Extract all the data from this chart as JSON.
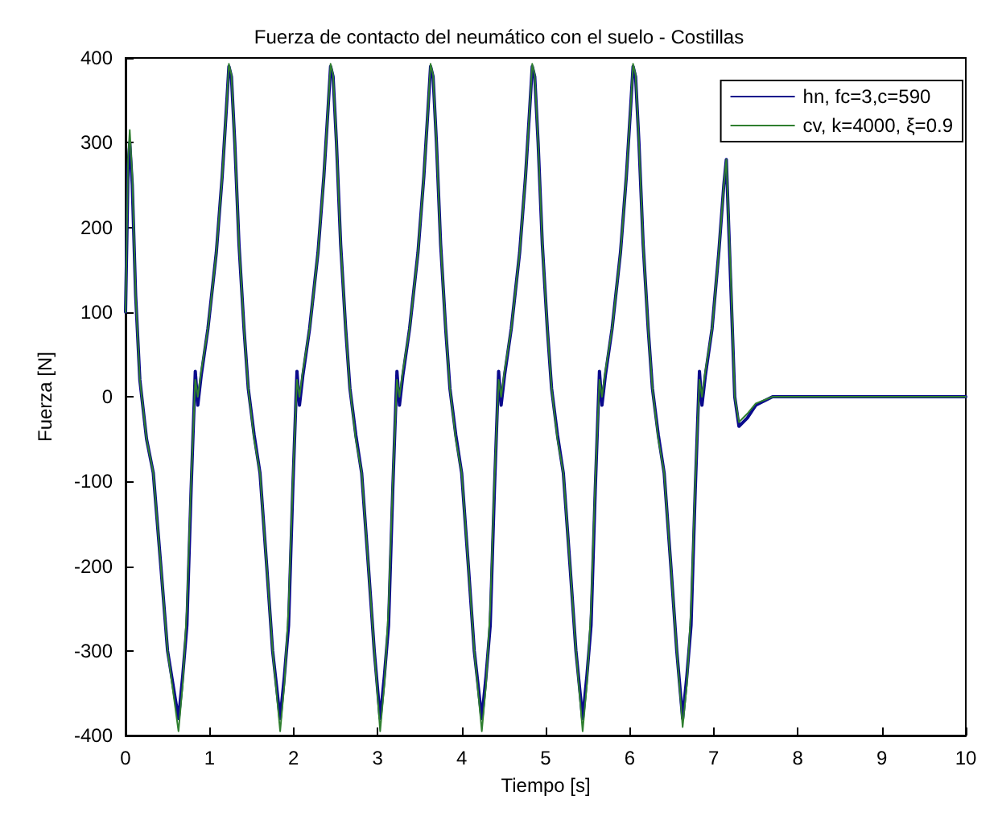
{
  "chart_data": {
    "type": "line",
    "title": "Fuerza de contacto del neumático con el suelo - Costillas",
    "xlabel": "Tiempo [s]",
    "ylabel": "Fuerza [N]",
    "xlim": [
      0,
      10
    ],
    "xticks": [
      0,
      1,
      2,
      3,
      4,
      5,
      6,
      7,
      8,
      9,
      10
    ],
    "ylim": [
      -400,
      400
    ],
    "yticks": [
      -400,
      -300,
      -200,
      -100,
      0,
      100,
      200,
      300,
      400
    ],
    "grid": false,
    "legend": "top right",
    "marker": "none",
    "line_style": "solid",
    "series": [
      {
        "name": "hn, fc=3,c=590",
        "color": "#0a0a8c",
        "x": [
          0,
          0.03,
          0.05,
          0.08,
          0.12,
          0.17,
          0.25,
          0.33,
          0.42,
          0.5,
          0.63,
          0.68,
          0.73,
          0.78,
          0.83,
          0.86,
          0.9,
          0.98,
          1.08,
          1.15,
          1.2,
          1.23,
          1.26,
          1.3,
          1.35,
          1.41,
          1.46,
          1.53,
          1.6,
          1.68,
          1.75,
          1.84,
          1.89,
          1.94,
          1.99,
          2.04,
          2.07,
          2.11,
          2.19,
          2.29,
          2.36,
          2.41,
          2.44,
          2.47,
          2.51,
          2.56,
          2.62,
          2.67,
          2.74,
          2.81,
          2.89,
          2.96,
          3.03,
          3.08,
          3.13,
          3.18,
          3.23,
          3.26,
          3.3,
          3.38,
          3.48,
          3.55,
          3.6,
          3.63,
          3.66,
          3.7,
          3.75,
          3.81,
          3.86,
          3.93,
          4,
          4.08,
          4.15,
          4.24,
          4.29,
          4.34,
          4.39,
          4.44,
          4.47,
          4.51,
          4.59,
          4.69,
          4.76,
          4.81,
          4.84,
          4.87,
          4.91,
          4.96,
          5.02,
          5.07,
          5.14,
          5.21,
          5.29,
          5.36,
          5.44,
          5.49,
          5.54,
          5.59,
          5.64,
          5.67,
          5.71,
          5.79,
          5.89,
          5.96,
          6.01,
          6.04,
          6.07,
          6.11,
          6.16,
          6.22,
          6.27,
          6.34,
          6.41,
          6.49,
          6.56,
          6.63,
          6.68,
          6.73,
          6.78,
          6.83,
          6.86,
          6.9,
          6.98,
          7.06,
          7.12,
          7.15,
          7.2,
          7.25,
          7.3,
          7.4,
          7.5,
          7.7,
          8,
          10
        ],
        "values": [
          100,
          270,
          300,
          250,
          120,
          20,
          -50,
          -90,
          -200,
          -300,
          -380,
          -330,
          -270,
          -110,
          30,
          -10,
          25,
          80,
          170,
          260,
          340,
          390,
          378,
          300,
          180,
          80,
          10,
          -45,
          -90,
          -200,
          -300,
          -380,
          -330,
          -270,
          -110,
          30,
          -10,
          25,
          80,
          170,
          260,
          340,
          390,
          378,
          300,
          180,
          80,
          10,
          -45,
          -90,
          -200,
          -300,
          -380,
          -330,
          -270,
          -110,
          30,
          -10,
          25,
          80,
          170,
          260,
          340,
          390,
          378,
          300,
          180,
          80,
          10,
          -45,
          -90,
          -200,
          -300,
          -380,
          -330,
          -270,
          -110,
          30,
          -10,
          25,
          80,
          170,
          260,
          340,
          390,
          378,
          300,
          180,
          80,
          10,
          -45,
          -90,
          -200,
          -300,
          -380,
          -330,
          -270,
          -110,
          30,
          -10,
          25,
          80,
          170,
          260,
          340,
          390,
          378,
          300,
          180,
          80,
          10,
          -45,
          -90,
          -200,
          -300,
          -380,
          -330,
          -270,
          -110,
          30,
          -10,
          25,
          80,
          170,
          250,
          280,
          140,
          0,
          -35,
          -25,
          -10,
          0,
          0,
          0
        ]
      },
      {
        "name": "cv, k=4000, ξ=0.9",
        "color": "#2f7f2f",
        "x": [
          0,
          0.03,
          0.05,
          0.08,
          0.12,
          0.17,
          0.25,
          0.33,
          0.42,
          0.5,
          0.63,
          0.68,
          0.73,
          0.78,
          0.83,
          0.86,
          0.9,
          0.98,
          1.08,
          1.15,
          1.2,
          1.23,
          1.26,
          1.3,
          1.35,
          1.41,
          1.46,
          1.53,
          1.6,
          1.68,
          1.75,
          1.84,
          1.89,
          1.94,
          1.99,
          2.04,
          2.07,
          2.11,
          2.19,
          2.29,
          2.36,
          2.41,
          2.44,
          2.47,
          2.51,
          2.56,
          2.62,
          2.67,
          2.74,
          2.81,
          2.89,
          2.96,
          3.03,
          3.08,
          3.13,
          3.18,
          3.23,
          3.26,
          3.3,
          3.38,
          3.48,
          3.55,
          3.6,
          3.63,
          3.66,
          3.7,
          3.75,
          3.81,
          3.86,
          3.93,
          4,
          4.08,
          4.15,
          4.24,
          4.29,
          4.34,
          4.39,
          4.44,
          4.47,
          4.51,
          4.59,
          4.69,
          4.76,
          4.81,
          4.84,
          4.87,
          4.91,
          4.96,
          5.02,
          5.07,
          5.14,
          5.21,
          5.29,
          5.36,
          5.44,
          5.49,
          5.54,
          5.59,
          5.64,
          5.67,
          5.71,
          5.79,
          5.89,
          5.96,
          6.01,
          6.04,
          6.07,
          6.11,
          6.16,
          6.22,
          6.27,
          6.34,
          6.41,
          6.49,
          6.56,
          6.63,
          6.68,
          6.73,
          6.78,
          6.83,
          6.86,
          6.9,
          6.98,
          7.06,
          7.12,
          7.15,
          7.2,
          7.25,
          7.3,
          7.4,
          7.5,
          7.7,
          8,
          10
        ],
        "values": [
          100,
          280,
          315,
          260,
          120,
          20,
          -50,
          -90,
          -200,
          -300,
          -395,
          -340,
          -250,
          -100,
          20,
          0,
          30,
          80,
          170,
          260,
          340,
          393,
          380,
          300,
          180,
          80,
          10,
          -50,
          -90,
          -200,
          -300,
          -395,
          -340,
          -250,
          -100,
          20,
          0,
          30,
          80,
          170,
          260,
          340,
          393,
          380,
          300,
          180,
          80,
          10,
          -50,
          -90,
          -200,
          -300,
          -395,
          -340,
          -250,
          -100,
          20,
          0,
          30,
          80,
          170,
          260,
          340,
          393,
          380,
          300,
          180,
          80,
          10,
          -50,
          -90,
          -200,
          -300,
          -395,
          -340,
          -250,
          -100,
          20,
          0,
          30,
          80,
          170,
          260,
          340,
          393,
          380,
          300,
          180,
          80,
          10,
          -50,
          -90,
          -200,
          -300,
          -395,
          -340,
          -250,
          -100,
          20,
          0,
          30,
          80,
          170,
          260,
          340,
          393,
          380,
          300,
          180,
          80,
          10,
          -50,
          -90,
          -200,
          -300,
          -390,
          -340,
          -250,
          -100,
          20,
          0,
          30,
          80,
          170,
          250,
          280,
          150,
          0,
          -30,
          -20,
          -8,
          0,
          0,
          0
        ]
      }
    ]
  }
}
